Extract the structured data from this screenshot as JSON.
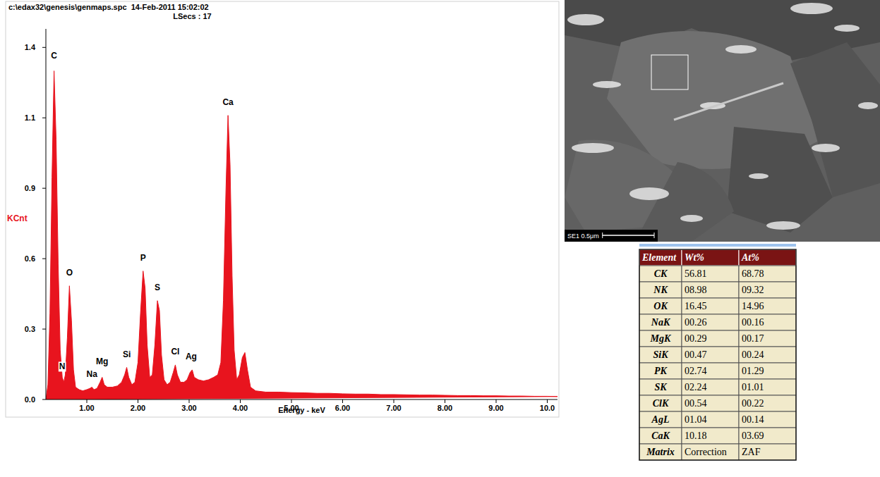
{
  "chart_data": {
    "type": "area",
    "title": "c:\\edax32\\genesis\\genmaps.spc  14-Feb-2011 15:02:02",
    "subtitle": "LSecs : 17",
    "x_label": "Energy - keV",
    "y_label": "KCnt",
    "color": "#e8141e",
    "grid": false,
    "x": [
      0.2,
      0.24,
      0.28,
      0.32,
      0.36,
      0.4,
      0.44,
      0.48,
      0.52,
      0.55,
      0.58,
      0.62,
      0.66,
      0.7,
      0.74,
      0.78,
      0.85,
      0.92,
      1.0,
      1.06,
      1.1,
      1.14,
      1.2,
      1.26,
      1.3,
      1.34,
      1.4,
      1.5,
      1.6,
      1.68,
      1.74,
      1.78,
      1.82,
      1.88,
      1.94,
      2.0,
      2.05,
      2.1,
      2.14,
      2.18,
      2.23,
      2.28,
      2.33,
      2.38,
      2.42,
      2.46,
      2.51,
      2.57,
      2.63,
      2.69,
      2.73,
      2.77,
      2.83,
      2.9,
      2.96,
      3.02,
      3.06,
      3.1,
      3.18,
      3.28,
      3.38,
      3.48,
      3.56,
      3.62,
      3.67,
      3.72,
      3.76,
      3.8,
      3.84,
      3.88,
      3.93,
      3.98,
      4.04,
      4.09,
      4.14,
      4.2,
      4.3,
      4.5,
      4.75,
      5.0,
      5.25,
      5.5,
      5.75,
      6.0,
      6.25,
      6.5,
      6.75,
      7.0,
      7.25,
      7.5,
      7.75,
      8.0,
      8.25,
      8.5,
      8.75,
      9.0,
      9.25,
      9.5,
      9.75,
      10.0,
      10.2
    ],
    "values": [
      0,
      0.06,
      0.35,
      0.9,
      1.33,
      1.05,
      0.55,
      0.2,
      0.09,
      0.07,
      0.1,
      0.25,
      0.46,
      0.32,
      0.12,
      0.05,
      0.04,
      0.035,
      0.04,
      0.045,
      0.05,
      0.04,
      0.045,
      0.07,
      0.09,
      0.06,
      0.05,
      0.05,
      0.055,
      0.07,
      0.1,
      0.13,
      0.09,
      0.06,
      0.07,
      0.15,
      0.35,
      0.52,
      0.45,
      0.22,
      0.09,
      0.1,
      0.22,
      0.4,
      0.36,
      0.18,
      0.08,
      0.06,
      0.07,
      0.11,
      0.14,
      0.1,
      0.07,
      0.07,
      0.08,
      0.11,
      0.12,
      0.09,
      0.08,
      0.075,
      0.08,
      0.09,
      0.1,
      0.15,
      0.4,
      0.85,
      1.15,
      0.95,
      0.5,
      0.2,
      0.08,
      0.1,
      0.17,
      0.19,
      0.12,
      0.05,
      0.035,
      0.03,
      0.03,
      0.028,
      0.027,
      0.025,
      0.025,
      0.023,
      0.022,
      0.022,
      0.02,
      0.02,
      0.019,
      0.018,
      0.018,
      0.017,
      0.016,
      0.016,
      0.015,
      0.015,
      0.014,
      0.014,
      0.013,
      0.013,
      0.012
    ],
    "xlim": [
      0.2,
      10.2
    ],
    "ylim": [
      0,
      1.5
    ],
    "xticks": [
      {
        "value": 1,
        "label": "1.00"
      },
      {
        "value": 2,
        "label": "2.00"
      },
      {
        "value": 3,
        "label": "3.00"
      },
      {
        "value": 4,
        "label": "4.00"
      },
      {
        "value": 5,
        "label": "5.00"
      },
      {
        "value": 6,
        "label": "6.00"
      },
      {
        "value": 7,
        "label": "7.00"
      },
      {
        "value": 8,
        "label": "8.00"
      },
      {
        "value": 9,
        "label": "9.00"
      },
      {
        "value": 10,
        "label": "10.0"
      }
    ],
    "yticks": [
      {
        "value": 0,
        "label": "0.0"
      },
      {
        "value": 0.285,
        "label": "0.3"
      },
      {
        "value": 0.57,
        "label": "0.6"
      },
      {
        "value": 0.855,
        "label": "0.9"
      },
      {
        "value": 1.14,
        "label": "1.1"
      },
      {
        "value": 1.425,
        "label": "1.4"
      }
    ],
    "annotations": [
      {
        "text": "C",
        "x": 0.36,
        "y": 1.37
      },
      {
        "text": "N",
        "x": 0.52,
        "y": 0.11
      },
      {
        "text": "O",
        "x": 0.66,
        "y": 0.49
      },
      {
        "text": "Na",
        "x": 1.1,
        "y": 0.08
      },
      {
        "text": "Mg",
        "x": 1.3,
        "y": 0.13
      },
      {
        "text": "Si",
        "x": 1.78,
        "y": 0.16
      },
      {
        "text": "P",
        "x": 2.1,
        "y": 0.55
      },
      {
        "text": "S",
        "x": 2.38,
        "y": 0.43
      },
      {
        "text": "Cl",
        "x": 2.73,
        "y": 0.17
      },
      {
        "text": "Ag",
        "x": 3.04,
        "y": 0.15
      },
      {
        "text": "Ca",
        "x": 3.76,
        "y": 1.18
      }
    ]
  },
  "image": {
    "scale_label": "SE1 0.5μm"
  },
  "table": {
    "header": [
      "Element",
      "Wt%",
      "At%"
    ],
    "rows": [
      [
        "CK",
        "56.81",
        "68.78"
      ],
      [
        "NK",
        "08.98",
        "09.32"
      ],
      [
        "OK",
        "16.45",
        "14.96"
      ],
      [
        "NaK",
        "00.26",
        "00.16"
      ],
      [
        "MgK",
        "00.29",
        "00.17"
      ],
      [
        "SiK",
        "00.47",
        "00.24"
      ],
      [
        "PK",
        "02.74",
        "01.29"
      ],
      [
        "SK",
        "02.24",
        "01.01"
      ],
      [
        "ClK",
        "00.54",
        "00.22"
      ],
      [
        "AgL",
        "01.04",
        "00.14"
      ],
      [
        "CaK",
        "10.18",
        "03.69"
      ],
      [
        "Matrix",
        "Correction",
        "ZAF"
      ]
    ]
  }
}
